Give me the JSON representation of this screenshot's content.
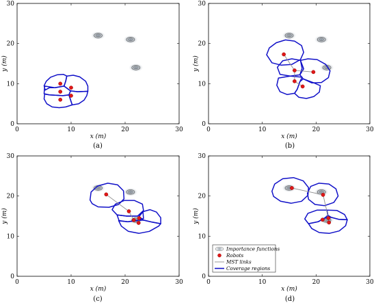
{
  "chart_data": [
    {
      "id": "a",
      "type": "scatter",
      "caption": "(a)",
      "xlabel": "x (m)",
      "ylabel": "y (m)",
      "xlim": [
        0,
        30
      ],
      "ylim": [
        0,
        30
      ],
      "xticks": [
        "0",
        "10",
        "20",
        "30"
      ],
      "yticks": [
        "0",
        "10",
        "20",
        "30"
      ],
      "importance_functions": [
        [
          15,
          22
        ],
        [
          21,
          21
        ],
        [
          22,
          14
        ]
      ],
      "robots": [
        [
          8,
          10
        ],
        [
          8,
          8
        ],
        [
          8,
          6
        ],
        [
          10,
          9
        ],
        [
          10,
          7
        ]
      ],
      "mst_links": [],
      "coverage_regions": [
        [
          [
            5.2,
            8.4
          ],
          [
            5.0,
            9.5
          ],
          [
            5.4,
            10.6
          ],
          [
            6.2,
            11.6
          ],
          [
            7.4,
            12.2
          ],
          [
            8.6,
            12.3
          ],
          [
            9.2,
            11.9
          ],
          [
            9.0,
            10.6
          ],
          [
            8.7,
            9.4
          ],
          [
            7.0,
            9.0
          ],
          [
            6.0,
            9.0
          ],
          [
            5.2,
            8.4
          ]
        ],
        [
          [
            9.2,
            11.9
          ],
          [
            10.4,
            12.1
          ],
          [
            11.6,
            11.7
          ],
          [
            12.7,
            10.6
          ],
          [
            13.1,
            9.4
          ],
          [
            13.1,
            8.1
          ],
          [
            11.2,
            8.0
          ],
          [
            9.9,
            8.2
          ],
          [
            8.7,
            9.4
          ],
          [
            9.0,
            10.6
          ],
          [
            9.2,
            11.9
          ]
        ],
        [
          [
            5.0,
            7.5
          ],
          [
            5.1,
            9.4
          ],
          [
            7.0,
            9.0
          ],
          [
            8.7,
            9.4
          ],
          [
            9.9,
            8.2
          ],
          [
            9.6,
            7.2
          ],
          [
            8.5,
            7.0
          ],
          [
            6.0,
            7.2
          ],
          [
            5.0,
            7.5
          ]
        ],
        [
          [
            9.6,
            7.2
          ],
          [
            9.9,
            8.2
          ],
          [
            11.2,
            8.0
          ],
          [
            13.1,
            8.1
          ],
          [
            12.9,
            7.0
          ],
          [
            12.4,
            5.9
          ],
          [
            11.4,
            5.0
          ],
          [
            10.2,
            4.7
          ],
          [
            9.6,
            7.2
          ]
        ],
        [
          [
            5.1,
            7.4
          ],
          [
            6.0,
            7.2
          ],
          [
            8.5,
            7.0
          ],
          [
            9.6,
            7.2
          ],
          [
            10.2,
            4.7
          ],
          [
            9.0,
            4.2
          ],
          [
            7.8,
            4.0
          ],
          [
            6.5,
            4.2
          ],
          [
            5.5,
            5.0
          ],
          [
            5.0,
            6.2
          ],
          [
            5.1,
            7.4
          ]
        ]
      ]
    },
    {
      "id": "b",
      "type": "scatter",
      "caption": "(b)",
      "xlabel": "x (m)",
      "ylabel": "y (m)",
      "xlim": [
        0,
        30
      ],
      "ylim": [
        0,
        30
      ],
      "xticks": [
        "0",
        "10",
        "20",
        "30"
      ],
      "yticks": [
        "0",
        "10",
        "20",
        "30"
      ],
      "importance_functions": [
        [
          15,
          22
        ],
        [
          21,
          21
        ],
        [
          22,
          14
        ]
      ],
      "robots": [
        [
          14,
          17.3
        ],
        [
          16,
          13.3
        ],
        [
          19.5,
          12.9
        ],
        [
          16,
          10.6
        ],
        [
          17.5,
          9.3
        ]
      ],
      "mst_links": [
        [
          [
            14,
            17.3
          ],
          [
            16,
            13.3
          ]
        ],
        [
          [
            16,
            13.3
          ],
          [
            19.5,
            12.9
          ]
        ],
        [
          [
            16,
            13.3
          ],
          [
            16,
            10.6
          ]
        ],
        [
          [
            16,
            10.6
          ],
          [
            17.5,
            9.3
          ]
        ]
      ],
      "coverage_regions": [
        [
          [
            10.8,
            17.2
          ],
          [
            11.3,
            18.9
          ],
          [
            12.6,
            20.2
          ],
          [
            14.3,
            20.9
          ],
          [
            16.0,
            20.6
          ],
          [
            17.3,
            19.5
          ],
          [
            17.7,
            17.8
          ],
          [
            17.1,
            16.0
          ],
          [
            15.5,
            14.8
          ],
          [
            13.5,
            14.6
          ],
          [
            11.8,
            15.2
          ],
          [
            10.8,
            17.2
          ]
        ],
        [
          [
            12.8,
            14.1
          ],
          [
            13.3,
            12.3
          ],
          [
            15.2,
            11.9
          ],
          [
            17.0,
            12.2
          ],
          [
            17.7,
            13.7
          ],
          [
            17.1,
            15.8
          ],
          [
            15.5,
            16.2
          ],
          [
            13.8,
            15.7
          ],
          [
            12.8,
            14.1
          ]
        ],
        [
          [
            17.0,
            12.2
          ],
          [
            17.4,
            13.8
          ],
          [
            17.1,
            15.8
          ],
          [
            18.5,
            16.2
          ],
          [
            20.2,
            16.0
          ],
          [
            21.8,
            14.8
          ],
          [
            22.6,
            13.2
          ],
          [
            22.3,
            11.5
          ],
          [
            21.0,
            10.3
          ],
          [
            19.2,
            10.2
          ],
          [
            17.6,
            11.2
          ],
          [
            17.0,
            12.2
          ]
        ],
        [
          [
            13.0,
            11.4
          ],
          [
            12.7,
            9.6
          ],
          [
            13.3,
            8.0
          ],
          [
            14.6,
            7.3
          ],
          [
            16.0,
            7.6
          ],
          [
            16.5,
            8.6
          ],
          [
            17.0,
            10.5
          ],
          [
            17.4,
            11.6
          ],
          [
            15.2,
            11.9
          ],
          [
            13.0,
            11.4
          ]
        ],
        [
          [
            16.5,
            8.6
          ],
          [
            16.0,
            7.6
          ],
          [
            16.8,
            6.6
          ],
          [
            18.2,
            6.3
          ],
          [
            19.6,
            6.8
          ],
          [
            20.6,
            7.9
          ],
          [
            20.8,
            9.5
          ],
          [
            19.6,
            10.2
          ],
          [
            17.6,
            11.2
          ],
          [
            17.0,
            10.5
          ],
          [
            16.5,
            8.6
          ]
        ]
      ]
    },
    {
      "id": "c",
      "type": "scatter",
      "caption": "(c)",
      "xlabel": "x (m)",
      "ylabel": "y (m)",
      "xlim": [
        0,
        30
      ],
      "ylim": [
        0,
        30
      ],
      "xticks": [
        "0",
        "10",
        "20",
        "30"
      ],
      "yticks": [
        "0",
        "10",
        "20",
        "30"
      ],
      "importance_functions": [
        [
          15,
          22
        ],
        [
          21,
          21
        ],
        [
          22,
          14
        ]
      ],
      "robots": [
        [
          16.5,
          20.4
        ],
        [
          20.7,
          16.2
        ],
        [
          21.6,
          14
        ],
        [
          22.6,
          14.5
        ],
        [
          22.5,
          13.3
        ]
      ],
      "mst_links": [
        [
          [
            16.5,
            20.4
          ],
          [
            20.7,
            16.2
          ]
        ],
        [
          [
            20.7,
            16.2
          ],
          [
            21.6,
            14
          ]
        ],
        [
          [
            21.6,
            14
          ],
          [
            22.6,
            14.5
          ]
        ],
        [
          [
            22.6,
            14.5
          ],
          [
            22.5,
            13.3
          ]
        ]
      ],
      "coverage_regions": [
        [
          [
            13.5,
            19.0
          ],
          [
            13.7,
            21.0
          ],
          [
            14.9,
            22.5
          ],
          [
            16.8,
            23.2
          ],
          [
            18.6,
            22.8
          ],
          [
            19.7,
            21.3
          ],
          [
            19.8,
            19.3
          ],
          [
            18.8,
            17.9
          ],
          [
            17.0,
            17.2
          ],
          [
            15.0,
            17.3
          ],
          [
            13.9,
            18.1
          ],
          [
            13.5,
            19.0
          ]
        ],
        [
          [
            17.6,
            16.6
          ],
          [
            18.2,
            18.0
          ],
          [
            19.9,
            18.9
          ],
          [
            21.7,
            18.9
          ],
          [
            23.2,
            18.0
          ],
          [
            23.4,
            16.4
          ],
          [
            22.3,
            15.0
          ],
          [
            20.3,
            15.0
          ],
          [
            18.5,
            15.3
          ],
          [
            17.6,
            16.6
          ]
        ],
        [
          [
            18.5,
            15.3
          ],
          [
            18.9,
            13.8
          ],
          [
            20.5,
            13.6
          ],
          [
            22.2,
            13.9
          ],
          [
            23.4,
            14.4
          ],
          [
            23.3,
            16.1
          ],
          [
            22.3,
            15.0
          ],
          [
            20.3,
            15.0
          ],
          [
            18.5,
            15.3
          ]
        ],
        [
          [
            22.6,
            14.9
          ],
          [
            23.3,
            16.1
          ],
          [
            24.6,
            16.6
          ],
          [
            25.8,
            16.0
          ],
          [
            26.6,
            14.6
          ],
          [
            26.6,
            13.1
          ],
          [
            25.0,
            13.5
          ],
          [
            23.4,
            14.0
          ],
          [
            22.6,
            14.9
          ]
        ],
        [
          [
            18.8,
            13.9
          ],
          [
            19.3,
            12.5
          ],
          [
            20.6,
            11.2
          ],
          [
            22.6,
            10.7
          ],
          [
            24.5,
            11.2
          ],
          [
            26.2,
            12.5
          ],
          [
            26.6,
            13.1
          ],
          [
            25.0,
            13.5
          ],
          [
            23.4,
            14.0
          ],
          [
            22.2,
            13.9
          ],
          [
            20.5,
            13.6
          ],
          [
            18.8,
            13.9
          ]
        ]
      ]
    },
    {
      "id": "d",
      "type": "scatter",
      "caption": "(d)",
      "xlabel": "x (m)",
      "ylabel": "y (m)",
      "xlim": [
        0,
        30
      ],
      "ylim": [
        0,
        30
      ],
      "xticks": [
        "0",
        "10",
        "20",
        "30"
      ],
      "yticks": [
        "0",
        "10",
        "20",
        "30"
      ],
      "importance_functions": [
        [
          15,
          22
        ],
        [
          21,
          21
        ],
        [
          22,
          14
        ]
      ],
      "robots": [
        [
          15.5,
          22
        ],
        [
          21.3,
          20.3
        ],
        [
          21.2,
          14.1
        ],
        [
          22.3,
          14.5
        ],
        [
          22.4,
          13.4
        ]
      ],
      "mst_links": [
        [
          [
            15.5,
            22
          ],
          [
            21.3,
            20.3
          ]
        ],
        [
          [
            21.3,
            20.3
          ],
          [
            22.3,
            14.5
          ]
        ],
        [
          [
            22.3,
            14.5
          ],
          [
            22.4,
            13.4
          ]
        ],
        [
          [
            22.3,
            14.5
          ],
          [
            21.2,
            14.1
          ]
        ]
      ],
      "coverage_regions": [
        [
          [
            11.8,
            21.2
          ],
          [
            12.3,
            23.0
          ],
          [
            13.8,
            24.3
          ],
          [
            15.8,
            24.6
          ],
          [
            17.6,
            23.8
          ],
          [
            18.6,
            22.1
          ],
          [
            18.5,
            20.2
          ],
          [
            17.3,
            18.7
          ],
          [
            15.4,
            18.2
          ],
          [
            13.4,
            18.7
          ],
          [
            12.1,
            19.9
          ],
          [
            11.8,
            21.2
          ]
        ],
        [
          [
            18.4,
            20.7
          ],
          [
            19.0,
            22.4
          ],
          [
            20.5,
            23.2
          ],
          [
            22.4,
            23.0
          ],
          [
            23.7,
            21.8
          ],
          [
            24.1,
            20.0
          ],
          [
            23.3,
            18.4
          ],
          [
            21.6,
            17.6
          ],
          [
            19.8,
            17.9
          ],
          [
            18.6,
            19.2
          ],
          [
            18.4,
            20.7
          ]
        ],
        [
          [
            17.9,
            14.3
          ],
          [
            18.5,
            15.7
          ],
          [
            20.2,
            16.5
          ],
          [
            22.0,
            16.5
          ],
          [
            22.2,
            15.2
          ],
          [
            21.6,
            14.5
          ],
          [
            20.4,
            13.6
          ],
          [
            18.6,
            13.1
          ],
          [
            17.9,
            14.3
          ]
        ],
        [
          [
            22.0,
            16.5
          ],
          [
            23.9,
            16.4
          ],
          [
            25.3,
            15.4
          ],
          [
            25.8,
            14.1
          ],
          [
            24.2,
            14.2
          ],
          [
            22.8,
            14.7
          ],
          [
            22.2,
            15.2
          ],
          [
            22.0,
            16.5
          ]
        ],
        [
          [
            18.6,
            13.1
          ],
          [
            19.2,
            11.9
          ],
          [
            20.6,
            10.9
          ],
          [
            22.5,
            10.7
          ],
          [
            24.3,
            11.3
          ],
          [
            25.5,
            12.6
          ],
          [
            25.8,
            14.1
          ],
          [
            24.2,
            14.2
          ],
          [
            22.8,
            14.7
          ],
          [
            21.6,
            14.5
          ],
          [
            20.4,
            13.6
          ],
          [
            18.6,
            13.1
          ]
        ]
      ],
      "legend": {
        "position": "bottom-left",
        "entries": [
          "Importance functions",
          "Robots",
          "MST links",
          "Coverage regions"
        ]
      }
    }
  ],
  "colors": {
    "coverage": "#1010c8",
    "robot_fill": "#e01818",
    "robot_edge": "#9a0000",
    "mst": "#8c8c8c",
    "importance_edge": "#555555",
    "importance_fill": "#9aa3ad"
  }
}
